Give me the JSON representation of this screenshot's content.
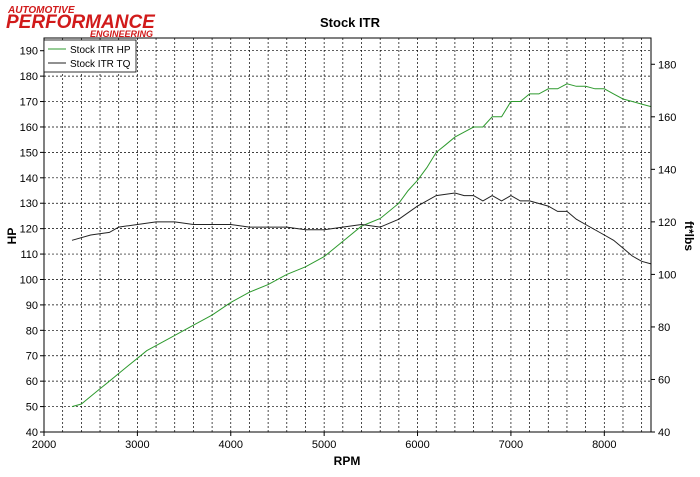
{
  "logo": {
    "line1": "AUTOMOTIVE",
    "line2": "PERFORMANCE",
    "line3": "ENGINEERING",
    "color": "#d11a1a"
  },
  "chart_data": {
    "type": "line",
    "title": "Stock ITR",
    "xlabel": "RPM",
    "ylabel": "HP",
    "y2label": "ft*lbs",
    "xlim": [
      2000,
      8500
    ],
    "ylim": [
      40,
      195
    ],
    "y2lim": [
      40,
      190
    ],
    "x_ticks": [
      2000,
      3000,
      4000,
      5000,
      6000,
      7000,
      8000
    ],
    "y_ticks": [
      40,
      50,
      60,
      70,
      80,
      90,
      100,
      110,
      120,
      130,
      140,
      150,
      160,
      170,
      180,
      190
    ],
    "y2_ticks": [
      40,
      60,
      80,
      100,
      120,
      140,
      160,
      180
    ],
    "grid": true,
    "legend_position": "top-left",
    "series": [
      {
        "name": "Stock ITR HP",
        "axis": "left",
        "color": "#2e9a2e",
        "x": [
          2300,
          2400,
          2500,
          2600,
          2700,
          2800,
          2900,
          3000,
          3100,
          3200,
          3400,
          3600,
          3800,
          4000,
          4200,
          4400,
          4600,
          4800,
          5000,
          5200,
          5400,
          5600,
          5800,
          5900,
          6000,
          6100,
          6200,
          6300,
          6400,
          6500,
          6600,
          6700,
          6800,
          6900,
          7000,
          7100,
          7200,
          7300,
          7400,
          7500,
          7600,
          7700,
          7800,
          7900,
          8000,
          8100,
          8200,
          8300,
          8400,
          8500
        ],
        "values": [
          50,
          51,
          54,
          57,
          60,
          63,
          66,
          69,
          72,
          74,
          78,
          82,
          86,
          91,
          95,
          98,
          102,
          105,
          109,
          115,
          121,
          124,
          130,
          135,
          139,
          144,
          150,
          153,
          156,
          158,
          160,
          160,
          164,
          164,
          170,
          170,
          173,
          173,
          175,
          175,
          177,
          176,
          176,
          175,
          175,
          173,
          171,
          170,
          169,
          168
        ]
      },
      {
        "name": "Stock ITR TQ",
        "axis": "right",
        "color": "#222222",
        "x": [
          2300,
          2500,
          2700,
          2800,
          3000,
          3200,
          3400,
          3600,
          3800,
          4000,
          4200,
          4400,
          4600,
          4800,
          5000,
          5200,
          5400,
          5600,
          5800,
          6000,
          6200,
          6400,
          6500,
          6600,
          6700,
          6800,
          6900,
          7000,
          7100,
          7200,
          7300,
          7400,
          7500,
          7600,
          7700,
          7800,
          8000,
          8100,
          8200,
          8300,
          8400,
          8500
        ],
        "values": [
          113,
          115,
          116,
          118,
          119,
          120,
          120,
          119,
          119,
          119,
          118,
          118,
          118,
          117,
          117,
          118,
          119,
          118,
          121,
          126,
          130,
          131,
          130,
          130,
          128,
          130,
          128,
          130,
          128,
          128,
          127,
          126,
          124,
          124,
          121,
          119,
          115,
          113,
          110,
          107,
          105,
          104
        ]
      }
    ]
  }
}
